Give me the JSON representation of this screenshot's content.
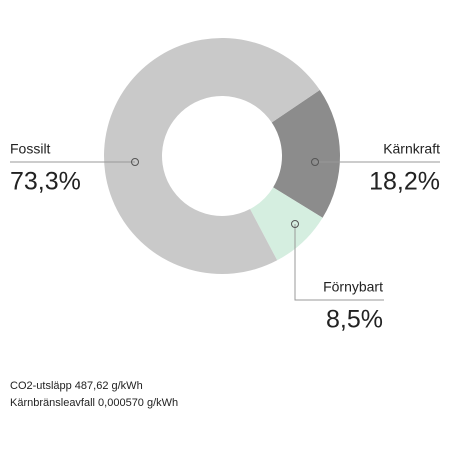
{
  "chart_data": {
    "type": "pie",
    "categories": [
      "Kärnkraft",
      "Förnybart",
      "Fossilt"
    ],
    "values": [
      18.2,
      8.5,
      73.3
    ],
    "value_labels": [
      "18,2%",
      "8,5%",
      "73,3%"
    ],
    "colors": [
      "#8c8c8c",
      "#d5eee0",
      "#c9c9c9"
    ],
    "annotations": [
      "CO2-utsläpp 487,62 g/kWh",
      "Kärnbränsleavfall 0,000570 g/kWh"
    ]
  }
}
